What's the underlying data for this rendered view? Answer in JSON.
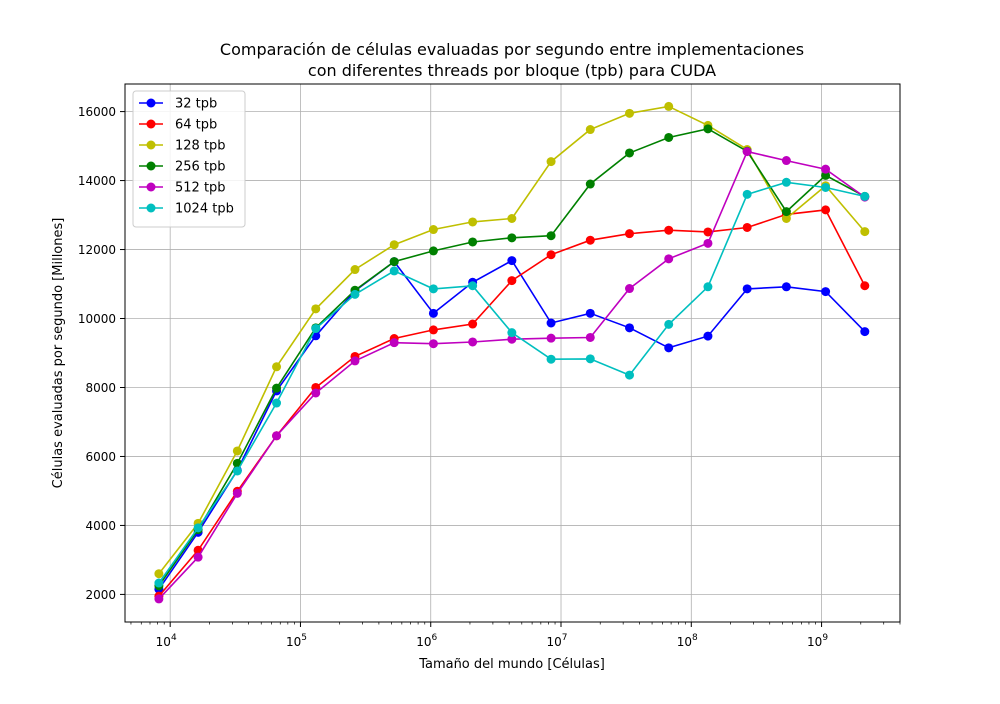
{
  "chart_data": {
    "type": "line",
    "title_lines": [
      "Comparación de células evaluadas por segundo entre implementaciones",
      "con diferentes threads por bloque (tpb) para CUDA"
    ],
    "xlabel": "Tamaño del mundo [Células]",
    "ylabel": "Células evaluadas por segundo [Millones]",
    "x_scale": "log2-spaced, log axis",
    "xlim": [
      4500,
      4000000000
    ],
    "ylim": [
      1200,
      16800
    ],
    "x_ticks": [
      {
        "base": "10",
        "exp": "4",
        "value": 10000
      },
      {
        "base": "10",
        "exp": "5",
        "value": 100000
      },
      {
        "base": "10",
        "exp": "6",
        "value": 1000000
      },
      {
        "base": "10",
        "exp": "7",
        "value": 10000000
      },
      {
        "base": "10",
        "exp": "8",
        "value": 100000000
      },
      {
        "base": "10",
        "exp": "9",
        "value": 1000000000
      }
    ],
    "y_ticks": [
      2000,
      4000,
      6000,
      8000,
      10000,
      12000,
      14000,
      16000
    ],
    "grid": true,
    "legend_position": "top-left",
    "x": [
      8192,
      16384,
      32768,
      65536,
      131072,
      262144,
      524288,
      1048576,
      2097152,
      4194304,
      8388608,
      16777216,
      33554432,
      67108864,
      134217728,
      268435456,
      536870912,
      1073741824,
      2147483648
    ],
    "series": [
      {
        "name": "32 tpb",
        "color": "#0000ff",
        "values": [
          2150,
          3800,
          5600,
          7900,
          9500,
          10800,
          11650,
          10150,
          11050,
          11680,
          9870,
          10150,
          9730,
          9150,
          9490,
          10860,
          10920,
          10780,
          9620
        ]
      },
      {
        "name": "64 tpb",
        "color": "#ff0000",
        "values": [
          1950,
          3280,
          4990,
          6600,
          8000,
          8900,
          9420,
          9670,
          9840,
          11100,
          11850,
          12270,
          12460,
          12560,
          12510,
          12640,
          13020,
          13150,
          10950
        ]
      },
      {
        "name": "128 tpb",
        "color": "#bfbf00",
        "values": [
          2600,
          4060,
          6160,
          8600,
          10280,
          11420,
          12140,
          12580,
          12800,
          12900,
          14550,
          15480,
          15950,
          16150,
          15600,
          14900,
          12900,
          13850,
          12520
        ]
      },
      {
        "name": "256 tpb",
        "color": "#008000",
        "values": [
          2250,
          3880,
          5800,
          7980,
          9730,
          10820,
          11650,
          11960,
          12220,
          12340,
          12400,
          13900,
          14800,
          15250,
          15500,
          14850,
          13100,
          14150,
          13540
        ]
      },
      {
        "name": "512 tpb",
        "color": "#bf00bf",
        "values": [
          1870,
          3080,
          4930,
          6600,
          7840,
          8770,
          9300,
          9270,
          9320,
          9400,
          9430,
          9450,
          10870,
          11730,
          12180,
          14840,
          14580,
          14330,
          13520
        ]
      },
      {
        "name": "1024 tpb",
        "color": "#00bfbf",
        "values": [
          2330,
          3930,
          5580,
          7550,
          9710,
          10700,
          11380,
          10860,
          10950,
          9590,
          8820,
          8830,
          8360,
          9830,
          10920,
          13600,
          13950,
          13800,
          13540
        ]
      }
    ]
  }
}
